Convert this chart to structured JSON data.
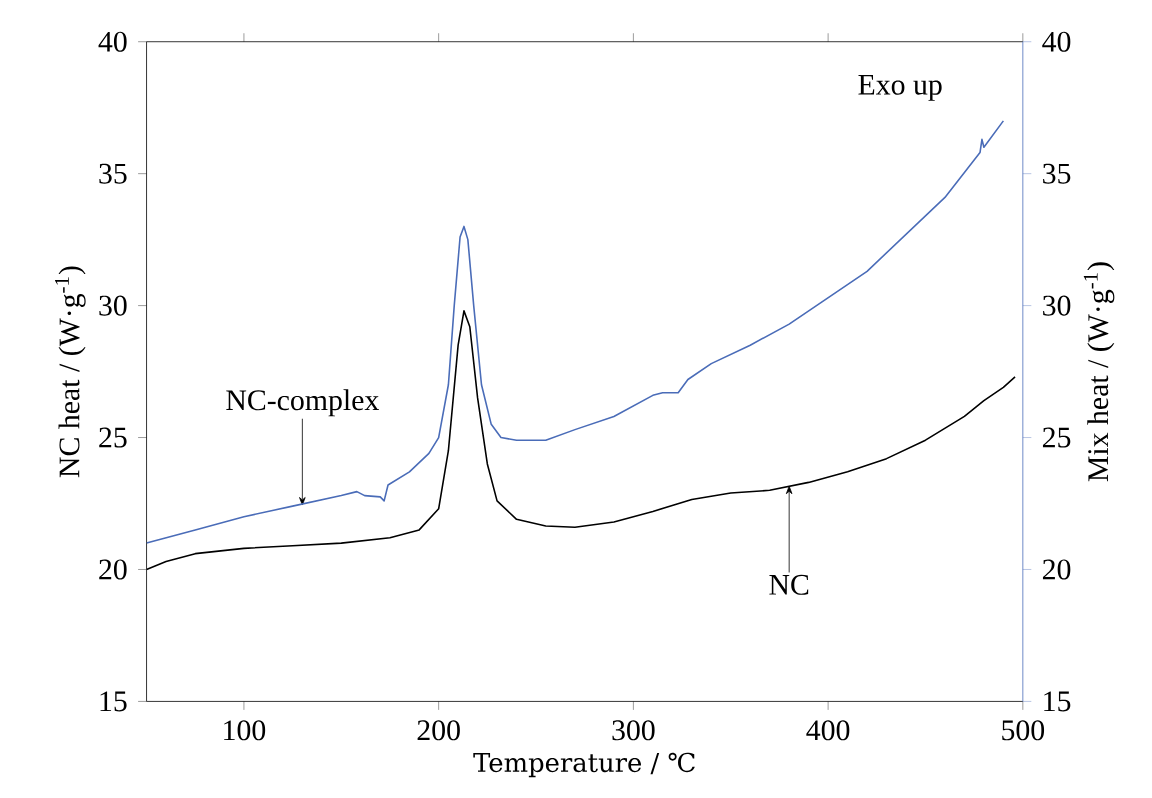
{
  "chart_data": {
    "type": "line",
    "xlabel": "Temperature / ℃",
    "ylabel": "NC heat / (W·g$^{-1}$)",
    "y2label": "Mix heat / (W·g$^{-1}$)",
    "xlim": [
      50,
      500
    ],
    "xticks": [
      100,
      200,
      300,
      400,
      500
    ],
    "ylim": [
      15,
      40
    ],
    "yticks": [
      15,
      20,
      25,
      30,
      35,
      40
    ],
    "y2lim": [
      15,
      40
    ],
    "y2ticks": [
      15,
      20,
      25,
      30,
      35,
      40
    ],
    "grid": false,
    "legend": false,
    "marker": "none",
    "line_style": "solid",
    "series": [
      {
        "color": "#000000",
        "x": [
          50,
          60,
          75,
          100,
          125,
          150,
          175,
          190,
          200,
          205,
          210,
          213,
          216,
          220,
          225,
          230,
          240,
          255,
          270,
          290,
          310,
          330,
          350,
          370,
          390,
          410,
          430,
          450,
          470,
          480,
          490,
          496
        ],
        "values": [
          20.0,
          20.3,
          20.6,
          20.8,
          20.9,
          21.0,
          21.2,
          21.5,
          22.3,
          24.5,
          28.5,
          29.8,
          29.2,
          26.5,
          24.0,
          22.6,
          21.9,
          21.65,
          21.6,
          21.8,
          22.2,
          22.65,
          22.9,
          23.0,
          23.3,
          23.7,
          24.2,
          24.9,
          25.8,
          26.4,
          26.9,
          27.3
        ]
      },
      {
        "color": "#4a6cb8",
        "axis": "y2",
        "x": [
          50,
          75,
          100,
          125,
          150,
          158,
          162,
          170,
          172,
          174,
          185,
          195,
          200,
          205,
          208,
          211,
          213,
          215,
          218,
          222,
          227,
          232,
          240,
          255,
          270,
          290,
          310,
          315,
          323,
          328,
          340,
          360,
          380,
          400,
          420,
          440,
          460,
          478,
          479,
          480,
          490
        ],
        "values": [
          21.0,
          21.5,
          22.0,
          22.4,
          22.8,
          22.95,
          22.8,
          22.75,
          22.6,
          23.2,
          23.7,
          24.4,
          25.0,
          27.0,
          30.0,
          32.6,
          33.0,
          32.5,
          30.0,
          27.0,
          25.5,
          25.0,
          24.9,
          24.9,
          25.3,
          25.8,
          26.6,
          26.7,
          26.7,
          27.2,
          27.8,
          28.5,
          29.3,
          30.3,
          31.3,
          32.7,
          34.1,
          35.8,
          36.3,
          36.0,
          37.0
        ]
      }
    ],
    "annotations": [
      {
        "text": "NC-complex",
        "x": 130,
        "y": 22.4
      },
      {
        "text": "NC",
        "x": 380,
        "y": 23.2
      },
      "Exo up"
    ]
  }
}
